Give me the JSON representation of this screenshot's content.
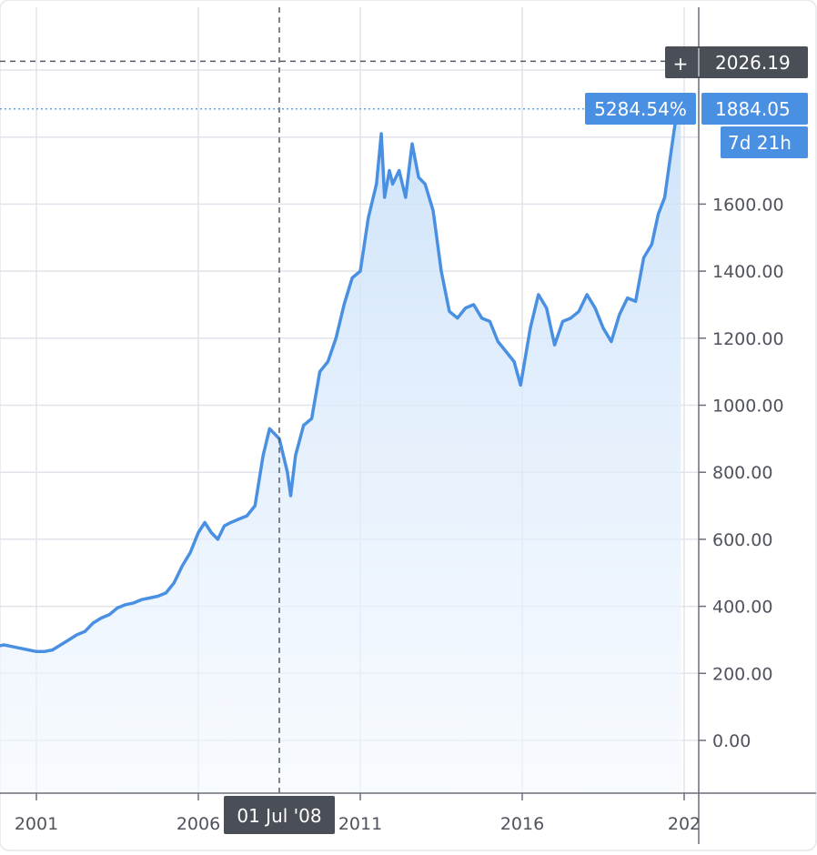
{
  "chart_data": {
    "type": "area",
    "x_axis_labels": [
      "2001",
      "2006",
      "2011",
      "2016",
      "202"
    ],
    "y_axis_labels": [
      "1600.00",
      "1400.00",
      "1200.00",
      "1000.00",
      "800.00",
      "600.00",
      "400.00",
      "200.00",
      "0.00"
    ],
    "ylim": [
      -140,
      2250
    ],
    "grid": true,
    "crosshair": {
      "date_label": "01 Jul '08",
      "price_label": "2026.19",
      "price": 2026.19,
      "plus_glyph": "+"
    },
    "last_price": {
      "price": 1884.05,
      "price_label": "1884.05",
      "change_label": "5284.54%",
      "countdown_label": "7d 21h"
    },
    "series": [
      {
        "x": [
          1999.0,
          1999.25,
          1999.5,
          1999.75,
          2000.0,
          2000.25,
          2000.5,
          2000.75,
          2001.0,
          2001.25,
          2001.5,
          2001.75,
          2002.0,
          2002.25,
          2002.5,
          2002.75,
          2003.0,
          2003.25,
          2003.5,
          2003.75,
          2004.0,
          2004.25,
          2004.5,
          2004.75,
          2005.0,
          2005.25,
          2005.5,
          2005.75,
          2006.0,
          2006.2,
          2006.4,
          2006.6,
          2006.8,
          2007.0,
          2007.25,
          2007.5,
          2007.75,
          2008.0,
          2008.2,
          2008.5,
          2008.75,
          2008.85,
          2009.0,
          2009.25,
          2009.5,
          2009.75,
          2010.0,
          2010.25,
          2010.5,
          2010.75,
          2011.0,
          2011.25,
          2011.5,
          2011.65,
          2011.75,
          2011.9,
          2012.0,
          2012.2,
          2012.4,
          2012.6,
          2012.8,
          2013.0,
          2013.25,
          2013.5,
          2013.75,
          2014.0,
          2014.25,
          2014.5,
          2014.75,
          2015.0,
          2015.25,
          2015.5,
          2015.75,
          2015.95,
          2016.25,
          2016.5,
          2016.75,
          2017.0,
          2017.25,
          2017.5,
          2017.75,
          2018.0,
          2018.25,
          2018.5,
          2018.75,
          2019.0,
          2019.25,
          2019.5,
          2019.75,
          2020.0,
          2020.2,
          2020.4,
          2020.6,
          2020.75,
          2020.9
        ],
        "y": [
          290,
          285,
          275,
          280,
          285,
          280,
          275,
          270,
          265,
          265,
          270,
          285,
          300,
          315,
          325,
          350,
          365,
          375,
          395,
          405,
          410,
          420,
          425,
          430,
          440,
          470,
          520,
          560,
          620,
          650,
          620,
          600,
          640,
          650,
          660,
          670,
          700,
          850,
          930,
          900,
          800,
          730,
          850,
          940,
          960,
          1100,
          1130,
          1200,
          1300,
          1380,
          1400,
          1560,
          1660,
          1810,
          1620,
          1700,
          1660,
          1700,
          1620,
          1780,
          1680,
          1660,
          1580,
          1400,
          1280,
          1260,
          1290,
          1300,
          1260,
          1250,
          1190,
          1160,
          1130,
          1060,
          1230,
          1330,
          1290,
          1180,
          1250,
          1260,
          1280,
          1330,
          1290,
          1230,
          1190,
          1270,
          1320,
          1310,
          1440,
          1480,
          1570,
          1620,
          1760,
          1860,
          1884.05
        ]
      }
    ],
    "colors": {
      "line": "#4a90e2",
      "area_top": "#c9e0f9",
      "area_bottom": "#f3f8fe",
      "grid": "#e1e3ea",
      "label_dark": "#4a4e57",
      "label_blue": "#4a90e2"
    }
  }
}
